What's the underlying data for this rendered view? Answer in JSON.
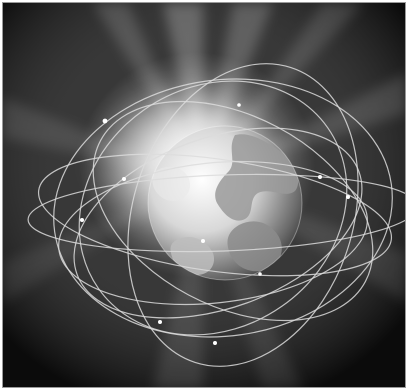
{
  "image": {
    "subject": "globe-with-orbit-rings",
    "palette": {
      "background": "#0b0b0b",
      "glow": "#ffffff",
      "globe_light": "#f2f2f2",
      "globe_dark": "#5a5a5a",
      "orbits": "#d9d9d9"
    }
  }
}
